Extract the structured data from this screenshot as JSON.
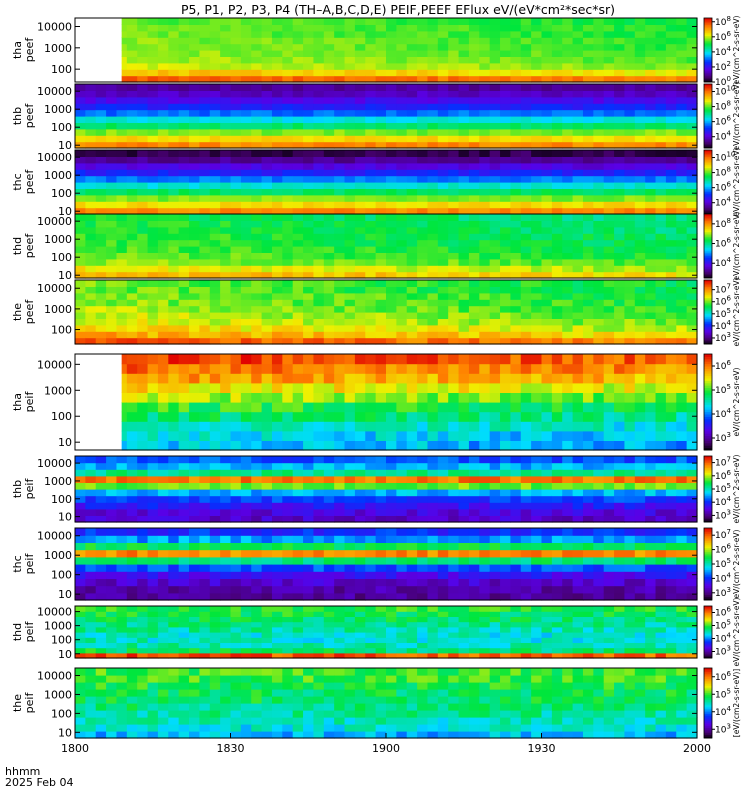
{
  "chart_data": {
    "type": "heatmap",
    "title": "P5, P1, P2, P3, P4 (TH–A,B,C,D,E) PEIF,PEEF EFlux eV/(eV*cm²*sec*sr)",
    "x_axis": {
      "title_line1": "hhmm",
      "title_line2": "2025 Feb 04",
      "ticks": [
        "1800",
        "1830",
        "1900",
        "1930",
        "2000"
      ],
      "range_hhmm": [
        "1800",
        "2000"
      ]
    },
    "y_scale": "log",
    "colorbar_label": "eV/(cm^2-s-sr-eV)",
    "colorbar_units_label": "[eV/(cm2-s-sr-eV)]",
    "panels": [
      {
        "label_line1": "tha",
        "label_line2": "peef",
        "yticks": [
          "10000",
          "1000",
          "100"
        ],
        "ylim_eV": [
          25,
          25000
        ],
        "colorbar_exponents": [
          "8",
          "6",
          "4",
          "2",
          "0"
        ],
        "zlim_log10": [
          0,
          8.5
        ],
        "data_start_hhmm": "1809",
        "profile_log10_low_to_high_energy": [
          7.8,
          6.8,
          6.2,
          6.0,
          5.9,
          5.8,
          5.8,
          5.7,
          5.7,
          5.6
        ],
        "time_trend_log10": -0.5
      },
      {
        "label_line1": "thb",
        "label_line2": "peef",
        "yticks": [
          "10000",
          "1000",
          "100",
          "10"
        ],
        "ylim_eV": [
          7,
          25000
        ],
        "colorbar_exponents": [
          "10",
          "8",
          "6",
          "4"
        ],
        "zlim_log10": [
          2.5,
          11
        ],
        "data_start_hhmm": "1800",
        "profile_log10_low_to_high_energy": [
          9.8,
          9.0,
          8.2,
          7.3,
          6.5,
          5.6,
          4.9,
          4.4,
          3.9,
          3.6
        ],
        "time_trend_log10": 0
      },
      {
        "label_line1": "thc",
        "label_line2": "peef",
        "yticks": [
          "10000",
          "1000",
          "100",
          "10"
        ],
        "ylim_eV": [
          7,
          25000
        ],
        "colorbar_exponents": [
          "10",
          "8",
          "6",
          "4"
        ],
        "zlim_log10": [
          2.5,
          11
        ],
        "data_start_hhmm": "1800",
        "profile_log10_low_to_high_energy": [
          9.8,
          9.0,
          8.2,
          7.4,
          6.6,
          5.7,
          4.9,
          4.2,
          3.5,
          3.0
        ],
        "time_trend_log10": 0
      },
      {
        "label_line1": "thd",
        "label_line2": "peef",
        "yticks": [
          "10000",
          "1000",
          "100",
          "10"
        ],
        "ylim_eV": [
          7,
          25000
        ],
        "colorbar_exponents": [
          "8",
          "6",
          "4"
        ],
        "zlim_log10": [
          2.5,
          9
        ],
        "data_start_hhmm": "1800",
        "profile_log10_low_to_high_energy": [
          7.8,
          7.4,
          7.0,
          6.8,
          6.7,
          6.6,
          6.6,
          6.5,
          6.5,
          6.4
        ],
        "time_trend_log10": -0.4
      },
      {
        "label_line1": "the",
        "label_line2": "peef",
        "yticks": [
          "10000",
          "1000",
          "100"
        ],
        "ylim_eV": [
          20,
          25000
        ],
        "colorbar_exponents": [
          "7",
          "6",
          "5",
          "4",
          "3"
        ],
        "zlim_log10": [
          2.5,
          7.8
        ],
        "data_start_hhmm": "1800",
        "profile_log10_low_to_high_energy": [
          7.4,
          6.9,
          6.6,
          6.4,
          6.3,
          6.2,
          6.1,
          6.1,
          6.0,
          6.0
        ],
        "time_trend_log10": -0.4
      },
      {
        "label_line1": "tha",
        "label_line2": "peif",
        "yticks": [
          "10000",
          "1000",
          "100",
          "10"
        ],
        "ylim_eV": [
          5,
          25000
        ],
        "colorbar_exponents": [
          "6",
          "5",
          "4",
          "3"
        ],
        "zlim_log10": [
          2.5,
          6.5
        ],
        "data_start_hhmm": "1809",
        "profile_log10_low_to_high_energy": [
          4.3,
          4.4,
          4.6,
          4.8,
          5.0,
          5.3,
          5.6,
          5.9,
          6.1,
          6.3
        ],
        "time_trend_log10": -0.2
      },
      {
        "label_line1": "thb",
        "label_line2": "peif",
        "yticks": [
          "10000",
          "1000",
          "100",
          "10"
        ],
        "ylim_eV": [
          5,
          25000
        ],
        "colorbar_exponents": [
          "7",
          "6",
          "5",
          "4",
          "3"
        ],
        "zlim_log10": [
          2.5,
          7.5
        ],
        "data_start_hhmm": "1800",
        "profile_log10_low_to_high_energy": [
          3.4,
          3.5,
          3.8,
          4.1,
          4.6,
          5.8,
          6.9,
          5.2,
          4.6,
          4.2
        ],
        "time_trend_log10": 0
      },
      {
        "label_line1": "thc",
        "label_line2": "peif",
        "yticks": [
          "10000",
          "1000",
          "100",
          "10"
        ],
        "ylim_eV": [
          5,
          25000
        ],
        "colorbar_exponents": [
          "7",
          "6",
          "5",
          "4",
          "3"
        ],
        "zlim_log10": [
          2.5,
          7.5
        ],
        "data_start_hhmm": "1800",
        "profile_log10_low_to_high_energy": [
          3.1,
          3.2,
          3.4,
          3.7,
          4.2,
          5.3,
          6.8,
          5.4,
          4.5,
          4.0
        ],
        "time_trend_log10": 0
      },
      {
        "label_line1": "thd",
        "label_line2": "peif",
        "yticks": [
          "10000",
          "1000",
          "100",
          "10"
        ],
        "ylim_eV": [
          5,
          25000
        ],
        "colorbar_exponents": [
          "6",
          "5",
          "4",
          "3"
        ],
        "zlim_log10": [
          2.5,
          6.5
        ],
        "data_start_hhmm": "1800",
        "profile_log10_low_to_high_energy": [
          6.2,
          4.8,
          4.6,
          4.5,
          4.5,
          4.6,
          4.7,
          4.8,
          4.9,
          5.0
        ],
        "time_trend_log10": -0.1
      },
      {
        "label_line1": "the",
        "label_line2": "peif",
        "yticks": [
          "10000",
          "1000",
          "100",
          "10"
        ],
        "ylim_eV": [
          5,
          25000
        ],
        "colorbar_exponents": [
          "6",
          "5",
          "4",
          "3"
        ],
        "zlim_log10": [
          2.5,
          6.5
        ],
        "data_start_hhmm": "1800",
        "profile_log10_low_to_high_energy": [
          4.2,
          4.4,
          4.5,
          4.6,
          4.7,
          4.8,
          4.8,
          4.9,
          5.0,
          5.0
        ],
        "time_trend_log10": 0
      }
    ]
  }
}
